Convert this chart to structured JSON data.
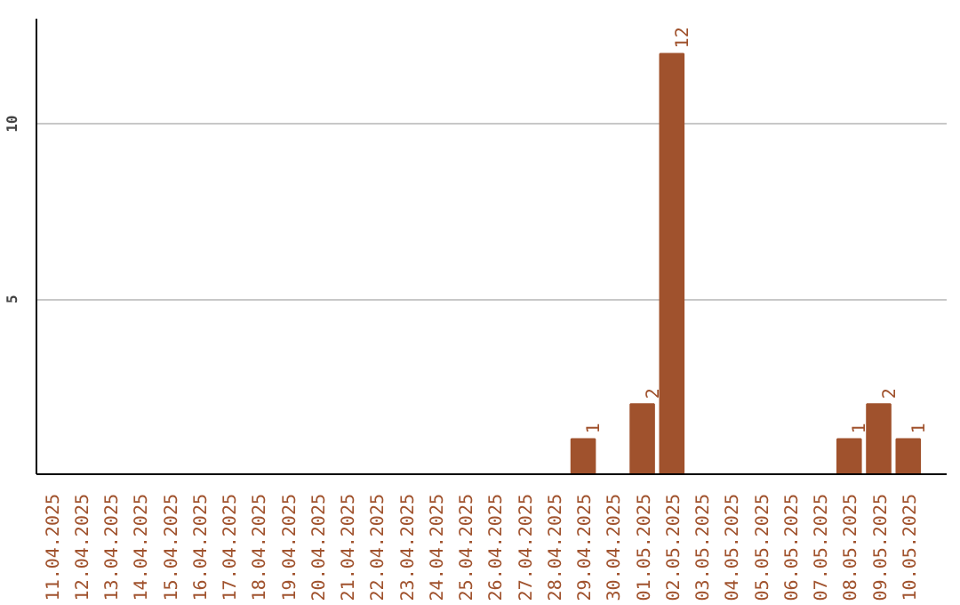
{
  "chart_data": {
    "type": "bar",
    "categories": [
      "11.04.2025",
      "12.04.2025",
      "13.04.2025",
      "14.04.2025",
      "15.04.2025",
      "16.04.2025",
      "17.04.2025",
      "18.04.2025",
      "19.04.2025",
      "20.04.2025",
      "21.04.2025",
      "22.04.2025",
      "23.04.2025",
      "24.04.2025",
      "25.04.2025",
      "26.04.2025",
      "27.04.2025",
      "28.04.2025",
      "29.04.2025",
      "30.04.2025",
      "01.05.2025",
      "02.05.2025",
      "03.05.2025",
      "04.05.2025",
      "05.05.2025",
      "06.05.2025",
      "07.05.2025",
      "08.05.2025",
      "09.05.2025",
      "10.05.2025"
    ],
    "values": [
      0,
      0,
      0,
      0,
      0,
      0,
      0,
      0,
      0,
      0,
      0,
      0,
      0,
      0,
      0,
      0,
      0,
      0,
      1,
      0,
      2,
      12,
      0,
      0,
      0,
      0,
      0,
      1,
      2,
      1
    ],
    "value_labels": [
      null,
      null,
      null,
      null,
      null,
      null,
      null,
      null,
      null,
      null,
      null,
      null,
      null,
      null,
      null,
      null,
      null,
      null,
      "1",
      null,
      "2",
      "12",
      null,
      null,
      null,
      null,
      null,
      "1",
      "2",
      "1"
    ],
    "color": "#a0522d",
    "ylim": [
      0,
      13
    ],
    "yticks": [
      5,
      10
    ],
    "grid": "y"
  }
}
